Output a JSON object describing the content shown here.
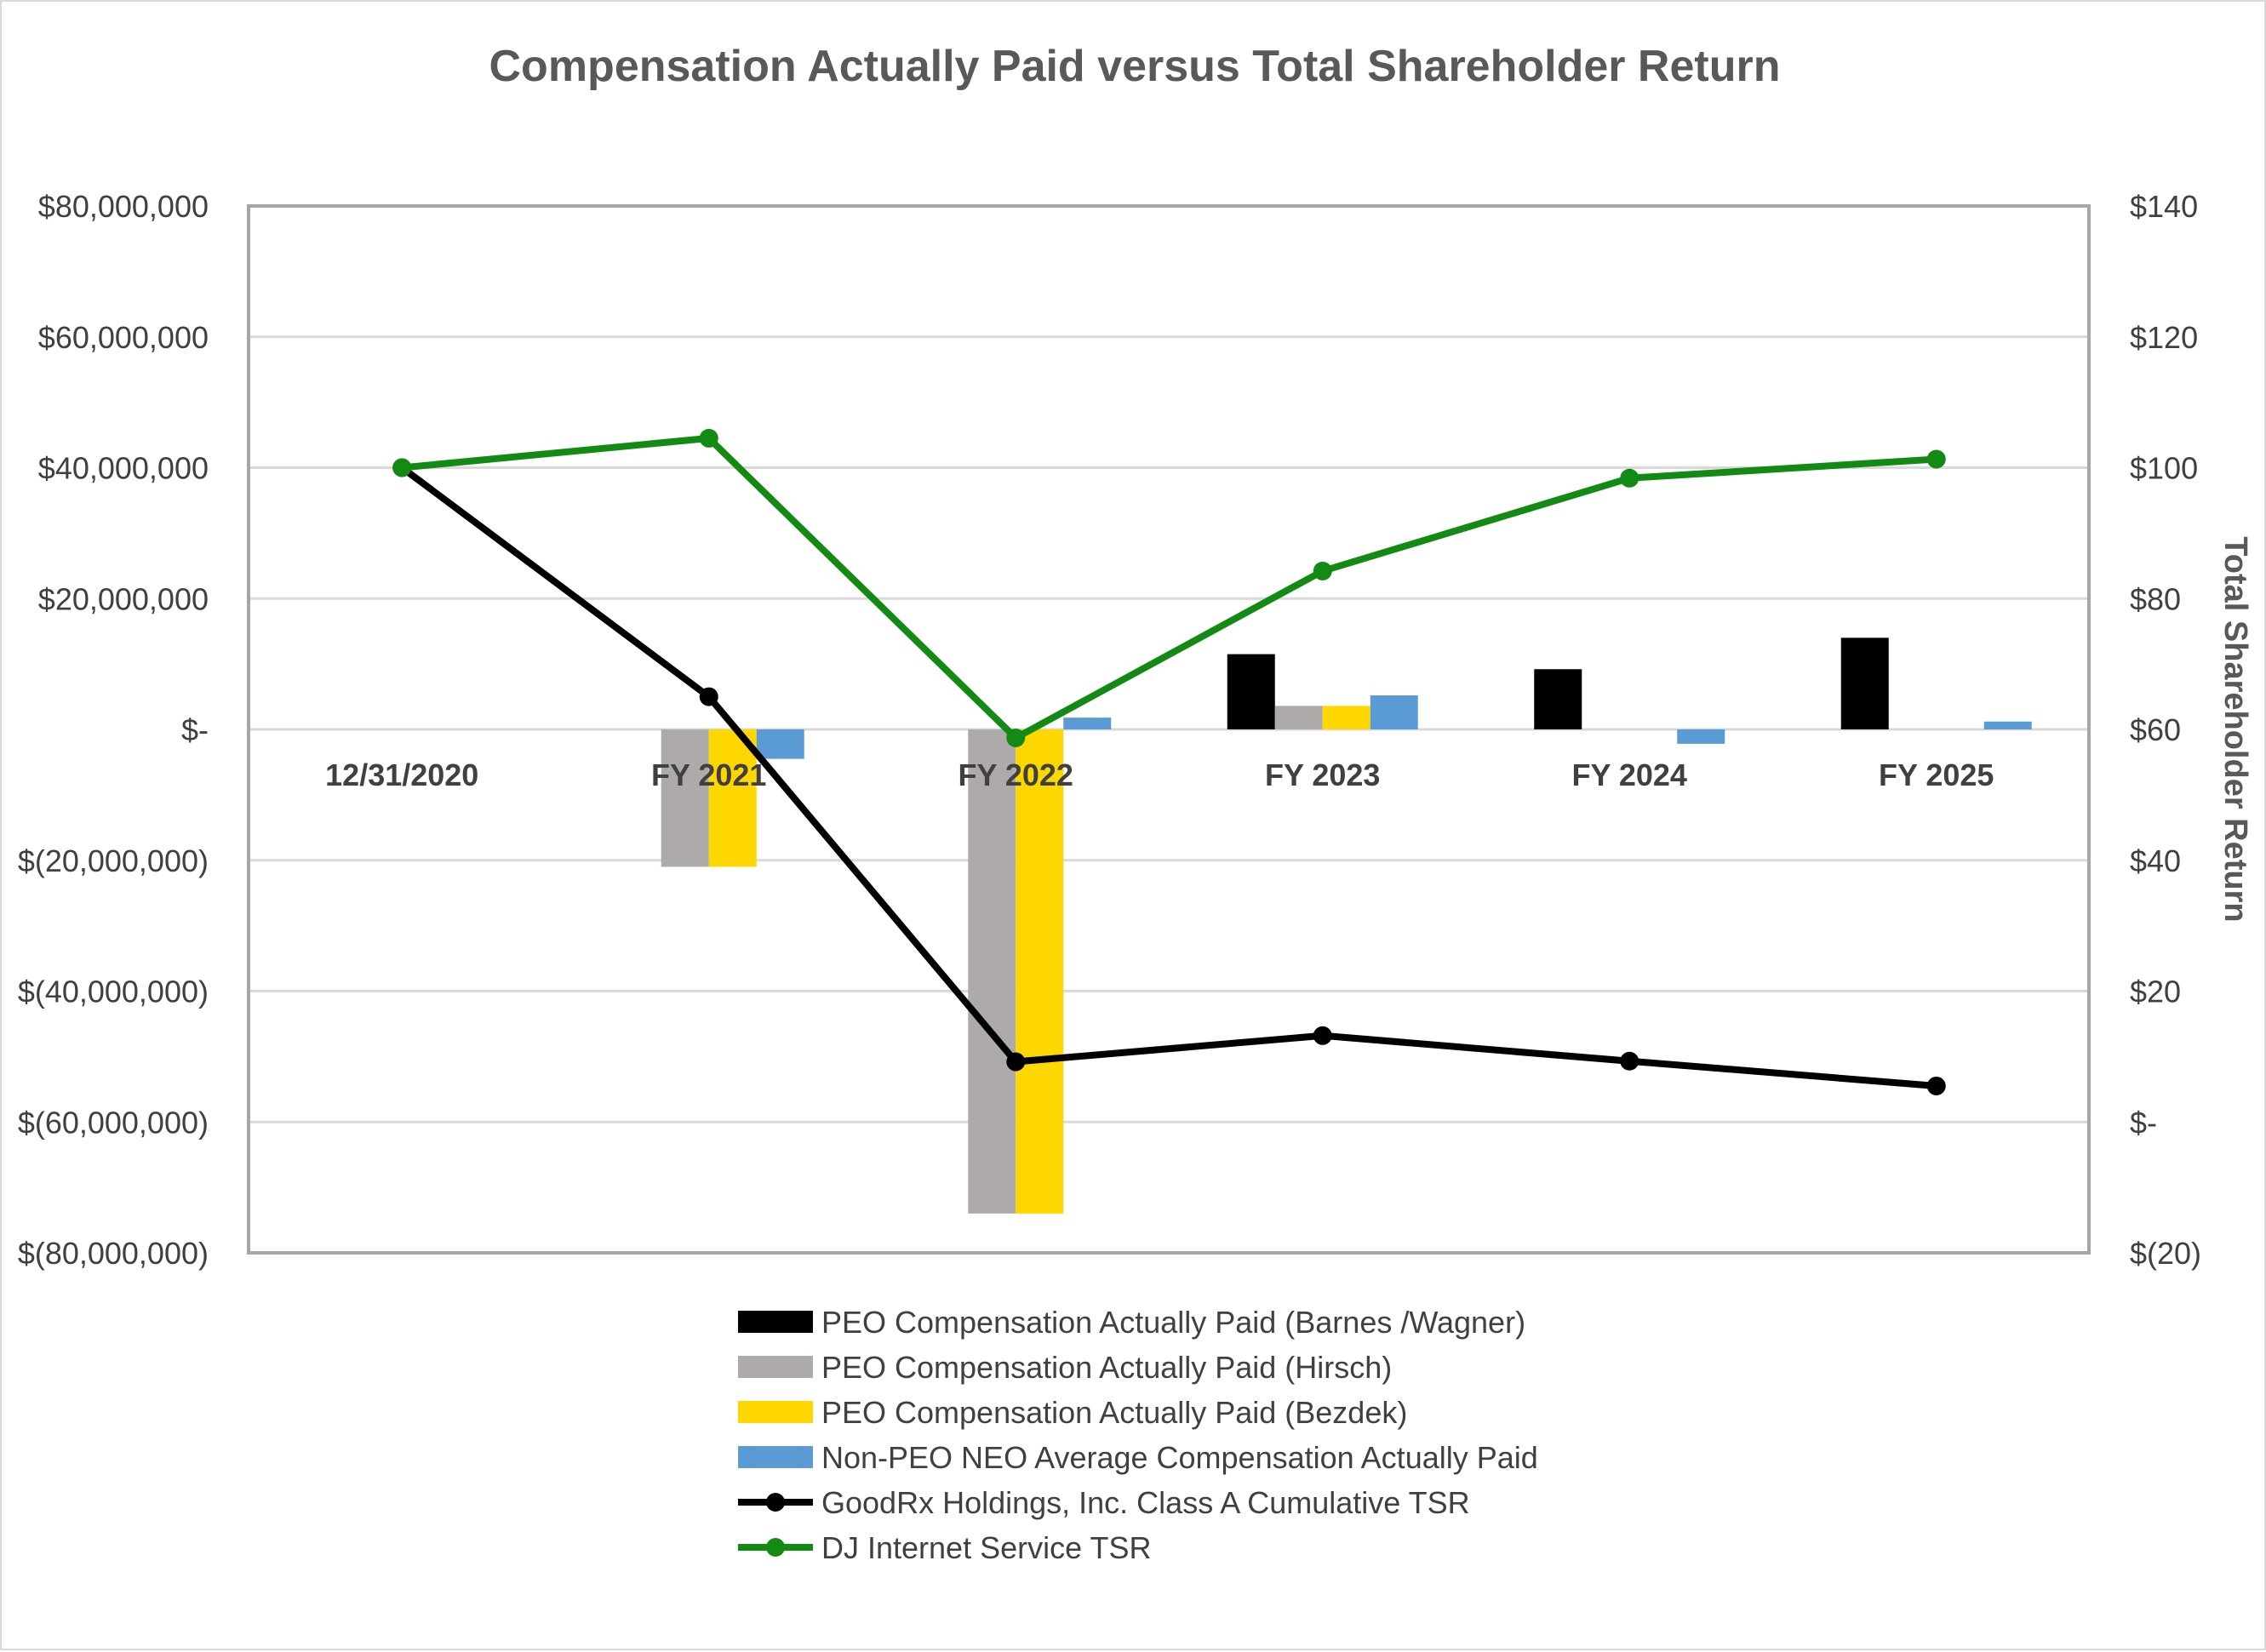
{
  "chart_data": {
    "type": "bar",
    "title": "Compensation Actually Paid versus Total Shareholder Return",
    "categories": [
      "12/31/2020",
      "FY 2021",
      "FY 2022",
      "FY 2023",
      "FY 2024",
      "FY 2025"
    ],
    "y_left": {
      "range": [
        -80000000,
        80000000
      ],
      "ticks": [
        80000000,
        60000000,
        40000000,
        20000000,
        0,
        -20000000,
        -40000000,
        -60000000,
        -80000000
      ],
      "tick_labels": [
        "$80,000,000",
        "$60,000,000",
        "$40,000,000",
        "$20,000,000",
        "$-",
        "$(20,000,000)",
        "$(40,000,000)",
        "$(60,000,000)",
        "$(80,000,000)"
      ]
    },
    "y_right": {
      "label": "Total Shareholder Return",
      "range": [
        -20,
        140
      ],
      "ticks": [
        140,
        120,
        100,
        80,
        60,
        40,
        20,
        0,
        -20
      ],
      "tick_labels": [
        "$140",
        "$120",
        "$100",
        "$80",
        "$60",
        "$40",
        "$20",
        "$-",
        "$(20)"
      ]
    },
    "grid": true,
    "legend_position": "bottom",
    "bar_series": [
      {
        "name": "PEO Compensation Actually Paid (Barnes /Wagner)",
        "color": "#000000",
        "values": [
          null,
          null,
          null,
          11500000,
          9200000,
          14000000
        ]
      },
      {
        "name": "PEO Compensation Actually Paid (Hirsch)",
        "color": "#aeaaaa",
        "values": [
          null,
          -21000000,
          -74000000,
          3600000,
          null,
          null
        ]
      },
      {
        "name": "PEO Compensation Actually Paid (Bezdek)",
        "color": "#ffd700",
        "values": [
          null,
          -21000000,
          -74000000,
          3600000,
          null,
          null
        ]
      },
      {
        "name": "Non-PEO NEO Average Compensation Actually Paid",
        "color": "#5b9bd5",
        "values": [
          null,
          -4500000,
          1800000,
          5200000,
          -2200000,
          1200000
        ]
      }
    ],
    "line_series": [
      {
        "name": "GoodRx Holdings, Inc. Class A Cumulative TSR",
        "color": "#000000",
        "values": [
          100,
          65,
          9.2,
          13.2,
          9.3,
          5.5
        ]
      },
      {
        "name": "DJ Internet Service TSR",
        "color": "#138a13",
        "values": [
          100,
          104.5,
          58.7,
          84.2,
          98.4,
          101.3
        ]
      }
    ]
  }
}
